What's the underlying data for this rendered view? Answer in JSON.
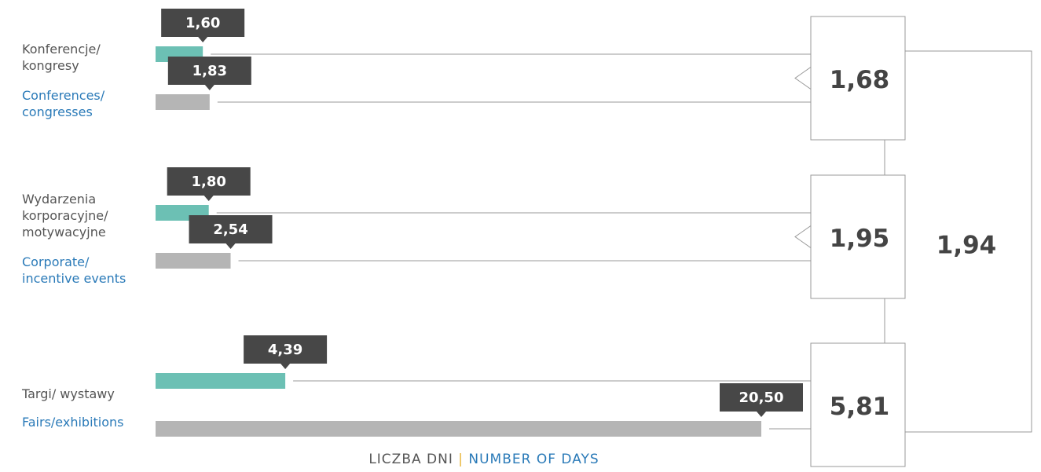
{
  "chart_data": {
    "type": "bar",
    "orientation": "horizontal",
    "categories": [
      "Konferencje/\nkongresy",
      "Wydarzenia\nkorporacyjne/\nmotywacyjne",
      "Targi/ wystawy"
    ],
    "categories_en": [
      "Conferences/\ncongresses",
      "Corporate/\nincentive events",
      "Fairs/exhibitions"
    ],
    "series": [
      {
        "color": "#6cc0b4",
        "values": [
          1.6,
          1.8,
          4.39
        ],
        "value_labels": [
          "1,60",
          "1,80",
          "4,39"
        ]
      },
      {
        "color": "#b5b5b5",
        "values": [
          1.83,
          2.54,
          20.5
        ],
        "value_labels": [
          "1,83",
          "2,54",
          "20,50"
        ]
      }
    ],
    "category_totals": {
      "values": [
        1.68,
        1.95,
        5.81
      ],
      "value_labels": [
        "1,68",
        "1,95",
        "5,81"
      ]
    },
    "overall_total": {
      "value": 1.94,
      "label": "1,94"
    },
    "xlim": [
      0,
      20.5
    ],
    "xlabel_pl": "LICZBA DNI",
    "xlabel_sep": "|",
    "xlabel_en": "NUMBER OF DAYS"
  }
}
